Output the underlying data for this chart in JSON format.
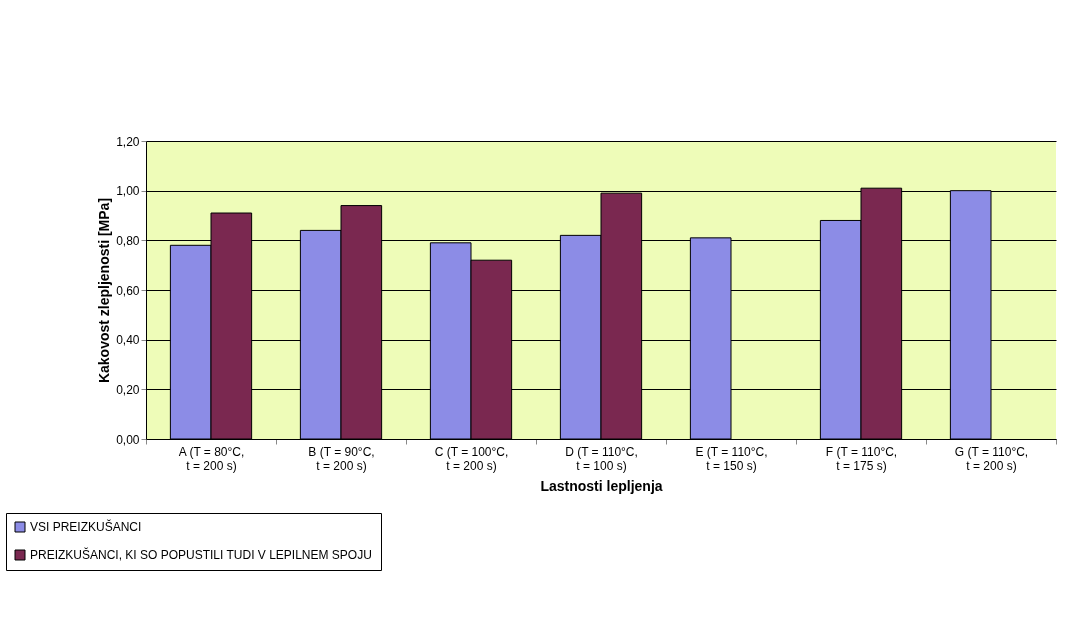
{
  "chart_data": {
    "type": "bar",
    "xlabel": "Lastnosti lepljenja",
    "ylabel": "Kakovost zlepljenosti [MPa]",
    "categories": [
      "A (T = 80°C, t = 200 s)",
      "B (T = 90°C, t = 200 s)",
      "C (T = 100°C, t = 200 s)",
      "D (T = 110°C, t = 100 s)",
      "E (T = 110°C, t = 150 s)",
      "F (T = 110°C, t = 175 s)",
      "G (T = 110°C, t = 200 s)"
    ],
    "series": [
      {
        "name": "VSI PREIZKUŠANCI",
        "color": "#8c8ce6",
        "values": [
          0.78,
          0.84,
          0.79,
          0.82,
          0.81,
          0.88,
          1.0
        ]
      },
      {
        "name": "PREIZKUŠANCI, KI SO POPUSTILI TUDI V LEPILNEM SPOJU",
        "color": "#7a2850",
        "values": [
          0.91,
          0.94,
          0.72,
          0.99,
          null,
          1.01,
          null
        ]
      }
    ],
    "ylim": [
      0,
      1.2
    ],
    "yticks": [
      {
        "value": 0,
        "label": "0,00"
      },
      {
        "value": 0.2,
        "label": "0,20"
      },
      {
        "value": 0.4,
        "label": "0,40"
      },
      {
        "value": 0.6,
        "label": "0,60"
      },
      {
        "value": 0.8,
        "label": "0,80"
      },
      {
        "value": 1.0,
        "label": "1,00"
      },
      {
        "value": 1.2,
        "label": "1,20"
      }
    ],
    "grid": "y",
    "legend": "bottom left"
  }
}
